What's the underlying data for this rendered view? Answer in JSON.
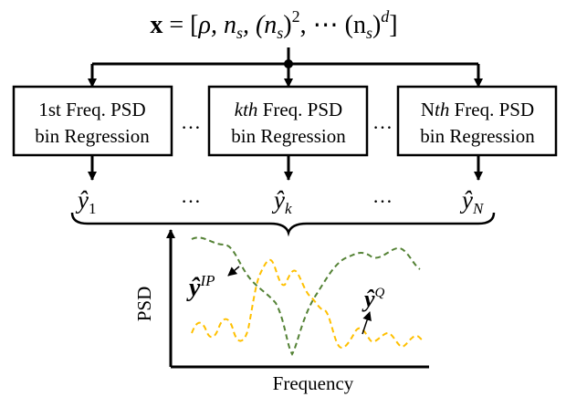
{
  "formula": {
    "bold_x": "x",
    "eq_open": " = [",
    "rho": "ρ",
    "comma_n": ", n",
    "sub_s": "s",
    "comma_paren_n": ", (n",
    "close_paren": ")",
    "sup_2": "2",
    "comma_cdots": ", ⋯ (n",
    "sup_d": "d",
    "close_bracket": "]"
  },
  "boxes": [
    {
      "line1_pre": "1st Freq. PSD",
      "line1_ital": "",
      "line1_post": "",
      "line2": "bin Regression"
    },
    {
      "line1_pre": "",
      "line1_ital": "kth",
      "line1_post": " Freq. PSD",
      "line2": "bin Regression"
    },
    {
      "line1_pre": "N",
      "line1_ital": "th",
      "line1_post": " Freq. PSD",
      "line2": "bin Regression"
    }
  ],
  "ellipsis": "…",
  "outputs": [
    {
      "base": "ŷ",
      "sub": "1"
    },
    {
      "base": "ŷ",
      "sub": "k"
    },
    {
      "base": "ŷ",
      "sub": "N"
    }
  ],
  "plot": {
    "ylabel": "PSD",
    "xlabel": "Frequency",
    "label_ip": {
      "base": "ŷ",
      "sup": "IP"
    },
    "label_q": {
      "base": "ŷ",
      "sup": "Q"
    },
    "colors": {
      "ip": "#548235",
      "q": "#FFC000"
    }
  }
}
